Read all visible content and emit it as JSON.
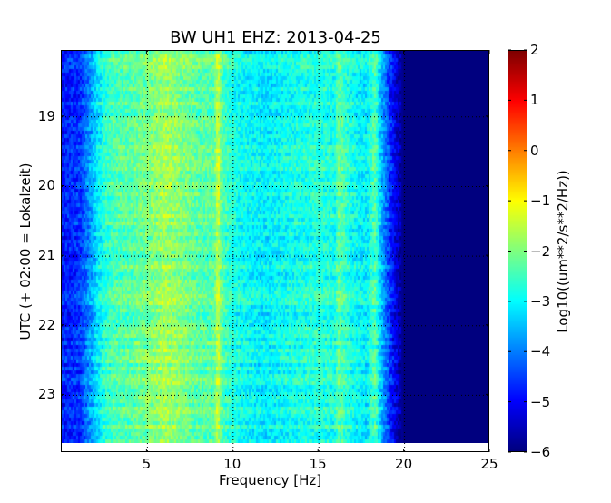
{
  "chart_data": {
    "type": "heatmap",
    "title": "BW UH1 EHZ: 2013-04-25",
    "xlabel": "Frequency [Hz]",
    "ylabel": "UTC (+ 02:00 = Lokalzeit)",
    "xlim": [
      0,
      25
    ],
    "ylim": [
      23.83,
      18.05
    ],
    "data_time_range": [
      18.05,
      23.7
    ],
    "x_ticks": [
      "5",
      "10",
      "15",
      "20",
      "25"
    ],
    "x_tick_values": [
      5,
      10,
      15,
      20,
      25
    ],
    "y_ticks": [
      "19",
      "20",
      "21",
      "22",
      "23"
    ],
    "y_tick_values": [
      19,
      20,
      21,
      22,
      23
    ],
    "grid": true,
    "colormap": "jet",
    "colorbar": {
      "label": "Log10((um**2/s**2/Hz))",
      "range": [
        -6,
        2
      ],
      "ticks": [
        "2",
        "1",
        "0",
        "−1",
        "−2",
        "−3",
        "−4",
        "−5",
        "−6"
      ],
      "tick_values": [
        2,
        1,
        0,
        -1,
        -2,
        -3,
        -4,
        -5,
        -6
      ]
    },
    "mean_spectrum": {
      "frequency_hz": [
        0,
        1,
        1.6,
        2.4,
        3,
        4,
        5.5,
        6,
        7,
        8,
        8.9,
        9.1,
        9.3,
        10,
        11,
        12,
        13,
        14,
        15,
        16,
        16.1,
        17,
        17.8,
        18.3,
        18.6,
        19,
        19.5,
        20,
        25
      ],
      "log10_psd": [
        -4.8,
        -4.6,
        -3.8,
        -2.7,
        -2.4,
        -2.3,
        -1.9,
        -1.7,
        -2.0,
        -2.3,
        -2.3,
        -1.3,
        -2.3,
        -2.8,
        -3.0,
        -3.1,
        -2.9,
        -2.8,
        -2.7,
        -2.8,
        -2.2,
        -2.9,
        -3.1,
        -2.3,
        -3.3,
        -4.3,
        -5.2,
        -6.0,
        -6.0
      ]
    }
  }
}
